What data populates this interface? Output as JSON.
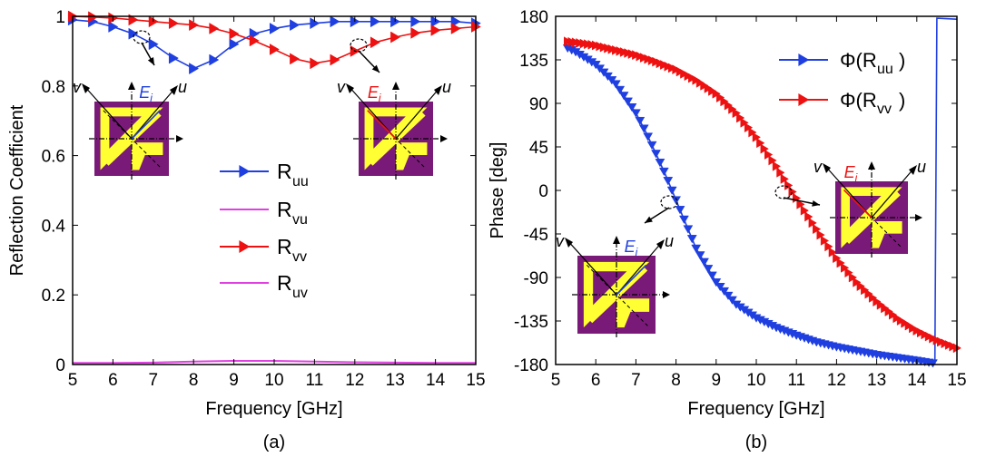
{
  "colors": {
    "blue": "#1f3fe0",
    "red": "#ee1111",
    "magenta": "#e040e0",
    "purple": "#7a1a78",
    "yellow": "#ffff33",
    "black": "#000000"
  },
  "chart_data": [
    {
      "type": "line",
      "panel_label": "(a)",
      "xlabel": "Frequency [GHz]",
      "ylabel": "Reflection Coefficient",
      "xlim": [
        5,
        15
      ],
      "ylim": [
        0,
        1
      ],
      "xticks": [
        "5",
        "6",
        "7",
        "8",
        "9",
        "10",
        "11",
        "12",
        "13",
        "14",
        "15"
      ],
      "yticks": [
        "0",
        "0.2",
        "0.4",
        "0.6",
        "0.8",
        "1"
      ],
      "grid": false,
      "legend_position": "center",
      "series": [
        {
          "name": "R",
          "subscript": "uu",
          "color": "#1f3fe0",
          "marker": "triangle-right",
          "x": [
            5,
            5.5,
            6,
            6.5,
            7,
            7.5,
            8,
            8.5,
            9,
            9.5,
            10,
            10.5,
            11,
            11.5,
            12,
            12.5,
            13,
            13.5,
            14,
            14.5,
            15
          ],
          "y": [
            0.99,
            0.985,
            0.97,
            0.95,
            0.92,
            0.88,
            0.85,
            0.875,
            0.92,
            0.95,
            0.965,
            0.975,
            0.98,
            0.985,
            0.985,
            0.985,
            0.985,
            0.985,
            0.985,
            0.985,
            0.98
          ]
        },
        {
          "name": "R",
          "subscript": "vu",
          "color": "#e040e0",
          "marker": "none",
          "x": [
            5,
            6,
            7,
            8,
            9,
            10,
            11,
            12,
            13,
            14,
            15
          ],
          "y": [
            0.005,
            0.005,
            0.006,
            0.009,
            0.011,
            0.011,
            0.009,
            0.007,
            0.006,
            0.005,
            0.005
          ]
        },
        {
          "name": "R",
          "subscript": "vv",
          "color": "#ee1111",
          "marker": "triangle-right",
          "x": [
            5,
            5.5,
            6,
            6.5,
            7,
            7.5,
            8,
            8.5,
            9,
            9.5,
            10,
            10.5,
            11,
            11.5,
            12,
            12.5,
            13,
            13.5,
            14,
            14.5,
            15
          ],
          "y": [
            1.0,
            0.998,
            0.995,
            0.99,
            0.985,
            0.98,
            0.975,
            0.965,
            0.95,
            0.93,
            0.905,
            0.878,
            0.865,
            0.875,
            0.9,
            0.925,
            0.94,
            0.952,
            0.96,
            0.965,
            0.97
          ]
        },
        {
          "name": "R",
          "subscript": "uv",
          "color": "#e040e0",
          "marker": "none",
          "x": [
            5,
            6,
            7,
            8,
            9,
            10,
            11,
            12,
            13,
            14,
            15
          ],
          "y": [
            0.004,
            0.004,
            0.005,
            0.008,
            0.01,
            0.01,
            0.008,
            0.006,
            0.005,
            0.004,
            0.004
          ]
        }
      ],
      "inset_labels": {
        "v": "v",
        "u": "u",
        "E": "E",
        "i": "i"
      }
    },
    {
      "type": "line",
      "panel_label": "(b)",
      "xlabel": "Frequency [GHz]",
      "ylabel": "Phase [deg]",
      "xlim": [
        5,
        15
      ],
      "ylim": [
        -180,
        180
      ],
      "xticks": [
        "5",
        "6",
        "7",
        "8",
        "9",
        "10",
        "11",
        "12",
        "13",
        "14",
        "15"
      ],
      "yticks": [
        "-180",
        "-135",
        "-90",
        "-45",
        "0",
        "45",
        "90",
        "135",
        "180"
      ],
      "grid": false,
      "legend_position": "top-right",
      "series": [
        {
          "name": "Φ(R",
          "subscript": "uu",
          "suffix": ")",
          "color": "#1f3fe0",
          "marker": "triangle-down",
          "x": [
            5.3,
            5.5,
            6,
            6.5,
            7,
            7.25,
            7.5,
            7.75,
            8,
            8.25,
            8.5,
            9,
            9.5,
            10,
            10.5,
            11,
            11.5,
            12,
            12.5,
            13,
            13.5,
            14,
            14.3,
            14.45,
            14.5,
            15
          ],
          "y": [
            147,
            143,
            130,
            110,
            80,
            60,
            38,
            15,
            -10,
            -35,
            -60,
            -95,
            -118,
            -132,
            -142,
            -150,
            -157,
            -162,
            -166,
            -170,
            -173,
            -176,
            -178,
            -179,
            178,
            177
          ]
        },
        {
          "name": "Φ(R",
          "subscript": "vv",
          "suffix": ")",
          "color": "#ee1111",
          "marker": "triangle-right",
          "x": [
            5.3,
            5.5,
            6,
            6.5,
            7,
            7.5,
            8,
            8.5,
            9,
            9.5,
            10,
            10.5,
            11,
            11.5,
            12,
            12.5,
            13,
            13.5,
            14,
            14.5,
            15
          ],
          "y": [
            154,
            153,
            150,
            145,
            140,
            133,
            125,
            114,
            100,
            80,
            55,
            25,
            -8,
            -40,
            -70,
            -95,
            -115,
            -132,
            -145,
            -155,
            -163
          ]
        }
      ],
      "inset_labels": {
        "v": "v",
        "u": "u",
        "E": "E",
        "i": "i"
      }
    }
  ]
}
